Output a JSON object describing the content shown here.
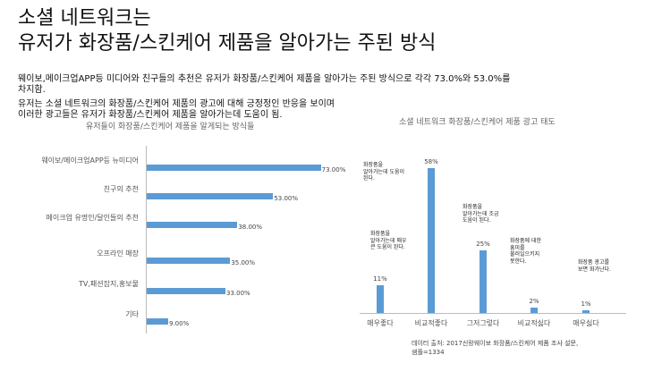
{
  "title": {
    "line1": "소셜 네트워크는",
    "line2": "유저가 화장품/스킨케어 제품을 알아가는 주된 방식"
  },
  "description": {
    "lines1": [
      "웨이보,메이크업APP등 미디어와 친구들의 추천은 유저가 화장품/스킨케어 제품을 알아가는 주된 방식으로 각각 73.0%와 53.0%를",
      "차지함."
    ],
    "lines2": [
      "유저는 소셜 네트워크의 화장품/스킨케어 제품의 광고에 대해 긍정정인 반응을 보이며",
      "이러한 광고들은 유저가 화장품/스킨케어 제품을 알아가는데 도움이 됨."
    ]
  },
  "chart_data": [
    {
      "type": "bar",
      "orientation": "horizontal",
      "title": "유저들이 화장품/스킨케어 제품을 알게되는 방식들",
      "categories": [
        "웨이보/메이크업APP등 뉴미디어",
        "친구의 추천",
        "메이크업 유명인/달인들의 추천",
        "오프라인 매장",
        "TV,패션잡지,홍보물",
        "기타"
      ],
      "values": [
        73.0,
        53.0,
        38.0,
        35.0,
        33.0,
        9.0
      ],
      "value_labels": [
        "73.00%",
        "53.00%",
        "38.00%",
        "35.00%",
        "33.00%",
        "9.00%"
      ],
      "xlim": [
        0,
        75
      ],
      "xlabel": "",
      "ylabel": ""
    },
    {
      "type": "bar",
      "orientation": "vertical",
      "title": "소셜 네트워크 화장품/스킨케어 제품 광고 태도",
      "categories": [
        "매우좋다",
        "비교적좋다",
        "그저그렇다",
        "비교적싫다",
        "매우싫다"
      ],
      "values": [
        11,
        58,
        25,
        2,
        1
      ],
      "value_labels": [
        "11%",
        "58%",
        "25%",
        "2%",
        "1%"
      ],
      "annotations": [
        [
          "화장품을",
          "알아가는데 매우",
          "큰 도움이 된다."
        ],
        [
          "화장품을",
          "알아가는데 도움이",
          "된다."
        ],
        [
          "화장품을",
          "알아가는데 조금",
          "도움이 된다."
        ],
        [
          "화장품에 대한",
          "흥미를",
          "불러일으키지",
          "못한다."
        ],
        [
          "화장품 광고를",
          "보면 화가난다."
        ]
      ],
      "ylim": [
        0,
        60
      ],
      "xlabel": "",
      "ylabel": ""
    }
  ],
  "source": {
    "lines": [
      "데이터 출처: 2017신랑웨이보 화장품/스킨케어 제품 조사 설문,",
      "샘플=1334"
    ]
  },
  "colors": {
    "bar": "#5b9bd5"
  }
}
